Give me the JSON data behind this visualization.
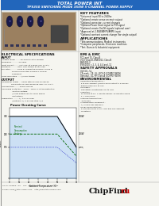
{
  "title_line1": "TOTAL POWER INT",
  "title_line2": "TPS350 SWITCHING MODE 350W 5-CHANNEL POWER SUPPLY",
  "title_bg": "#2266bb",
  "title_text_color": "#ffffff",
  "bg_color": "#f5f5f0",
  "key_features_title": "KEY FEATURES",
  "key_features": [
    "*Universal input 90 to 264Vac",
    "*Optional remote sense on main output",
    "*Optional connector, current changes",
    "*Optional Power Good signal to P/G signal",
    "*Optional remote On/Off signals (optional user)",
    "*Approved at 2.5KW/AMPS/AMPS input",
    "*Optional constant current change (for single output)"
  ],
  "applications_title": "APPLICATIONS",
  "applications": [
    "*Telecommunications, Medical instruments",
    "*Computer peripherals, Electronic machines",
    "*Test, Burn-in & Industrial equipment"
  ],
  "elec_spec_title": "ELECTRICAL SPECIFICATIONS",
  "input_title": "INPUT",
  "input_specs": [
    "Voltage range ....... 90-264VAC auto ranging",
    "Frequency .......... 47-63Hz",
    "Input current ....... 10A rms, at 115Vac (IEC 1.10A)",
    "Efficiency .......... 80%, 85% typical at full load",
    "EMI filter .......... Class B, conducted EN55022 Class B",
    "                 Class B conducted, EN55022 Class B",
    "                 Compliant",
    "*Line regulation .... +/-0.5% typical"
  ],
  "output_title": "OUTPUT",
  "output_specs": [
    "*Maximum power ... 350W with 50 CFM forced air",
    "                200W with 20 CFM forced air and 1 Hr S.O.A.",
    "*Holdup time ....... 20ms hold-up",
    "*Overload protection . 110% - 150% of rated protection",
    "                  Shut on voltage",
    "                  (Allow output 50% to 100% above",
    "                  protection)",
    "*Regulation ........ +/- 1% Full load",
    "                  (Optional +/- 0.5% per step +/-0"
  ],
  "emc_title": "EMI & EMC",
  "emc_specs": [
    "FCC part 15, Class B",
    "VCCI Class B, EN55022, Class B",
    "EN61000-3",
    "EN 61000 = 2, 3, 4, 4-4 and -11"
  ],
  "safety_title": "SAFETY APPROVALS",
  "safety_specs": [
    "UL/CUL - UL",
    "CE mark - CE, UL, LPD3.0 (COMPLY WITH)",
    "Optional - UL, RH Class A (COMPLY WITH)"
  ],
  "env_title": "ENVIRONMENTAL",
  "env_specs": [
    "*Operating temperature :",
    " 0 to 50C ambient (derate each output to 2.5W per",
    " degree from 50C to 70C",
    "*Humidity :",
    " Operating conditioning, 5% to 95%",
    "*Vibration :",
    " 10-500Hz at 1G, 1 minute period, 10 minutes along",
    " X, Y and Z axis",
    "*Storage temperature :",
    " -40 to 85C",
    "*Temperature coefficient :",
    " +/- 0.02% per degree 0",
    "*MTBF demonstrated :",
    " 1,000,000 hours at full load and 25C ambient",
    " conditions"
  ],
  "curve_title": "Power Derating Curve",
  "curve_x_label": "Ambient Temperature ( C)",
  "curve_fill_color": "#aaccee",
  "footer_text": "TOTAL POWER, INC.  TEL: (xx) 1234-5678  FAX: (x)  E-mail: sales@total-power.com  http://www.total-power.com",
  "divider_color": "#999999",
  "text_color": "#111111"
}
